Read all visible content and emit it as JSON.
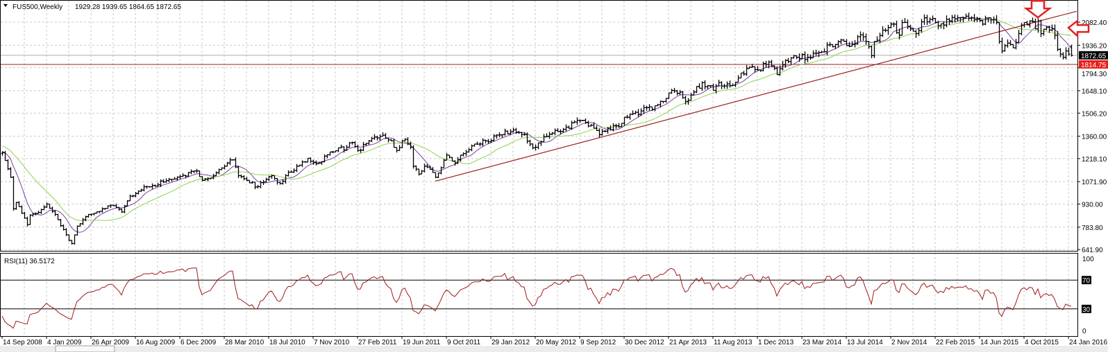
{
  "header": {
    "symbol_timeframe": "FUS500,Weekly",
    "ohlc_text": "1929.28 1939.65 1864.65 1872.65"
  },
  "rsi_panel": {
    "label": "RSI(11) 36.5172",
    "levels": [
      "100",
      "70",
      "30",
      "0"
    ]
  },
  "price_labels": {
    "current": "1872.65",
    "line": "1814.75"
  },
  "colors": {
    "bars": "#000000",
    "ma_fast": "#7a3fa0",
    "ma_slow": "#8fd14f",
    "trendline": "#9b2020",
    "rsi": "#a01818",
    "line_label_bg": "#e8201c",
    "current_label_bg": "#000000",
    "arrow": "#e02020"
  },
  "chart_data": {
    "type": "ohlc",
    "title": "FUS500,Weekly",
    "interval_weeks": 1,
    "first_bar": "14 Sep 2008",
    "last_bar_ohlc": {
      "open": 1929.28,
      "high": 1939.65,
      "low": 1864.65,
      "close": 1872.65
    },
    "ylim": [
      632,
      2222
    ],
    "y_ticks": [
      "2082.40",
      "1936.20",
      "1794.30",
      "1648.10",
      "1506.20",
      "1360.00",
      "1218.10",
      "1071.90",
      "930.00",
      "783.80",
      "641.90"
    ],
    "x_ticks": [
      "14 Sep 2008",
      "4 Jan 2009",
      "26 Apr 2009",
      "16 Aug 2009",
      "6 Dec 2009",
      "28 Mar 2010",
      "18 Jul 2010",
      "7 Nov 2010",
      "27 Feb 2011",
      "19 Jun 2011",
      "9 Oct 2011",
      "29 Jan 2012",
      "20 May 2012",
      "9 Sep 2012",
      "30 Dec 2012",
      "21 Apr 2013",
      "11 Aug 2013",
      "1 Dec 2013",
      "23 Mar 2014",
      "13 Jul 2014",
      "2 Nov 2014",
      "22 Feb 2015",
      "14 Jun 2015",
      "4 Oct 2015",
      "24 Jan 2016"
    ],
    "x_tick_every_weeks": 16,
    "bar_count": 386,
    "weekly_close_anchors": [
      [
        -24,
        1400
      ],
      [
        -12,
        1300
      ],
      [
        0,
        1255
      ],
      [
        3,
        1100
      ],
      [
        4,
        900
      ],
      [
        5,
        940
      ],
      [
        9,
        800
      ],
      [
        10,
        860
      ],
      [
        12,
        870
      ],
      [
        16,
        930
      ],
      [
        20,
        830
      ],
      [
        24,
        700
      ],
      [
        25,
        680
      ],
      [
        27,
        790
      ],
      [
        30,
        850
      ],
      [
        36,
        900
      ],
      [
        40,
        920
      ],
      [
        43,
        880
      ],
      [
        46,
        980
      ],
      [
        52,
        1040
      ],
      [
        58,
        1070
      ],
      [
        62,
        1090
      ],
      [
        64,
        1105
      ],
      [
        70,
        1140
      ],
      [
        72,
        1080
      ],
      [
        76,
        1110
      ],
      [
        80,
        1170
      ],
      [
        83,
        1210
      ],
      [
        85,
        1110
      ],
      [
        88,
        1080
      ],
      [
        92,
        1040
      ],
      [
        94,
        1070
      ],
      [
        97,
        1110
      ],
      [
        100,
        1060
      ],
      [
        102,
        1110
      ],
      [
        106,
        1170
      ],
      [
        110,
        1220
      ],
      [
        114,
        1190
      ],
      [
        118,
        1260
      ],
      [
        124,
        1290
      ],
      [
        126,
        1320
      ],
      [
        128,
        1270
      ],
      [
        132,
        1330
      ],
      [
        136,
        1360
      ],
      [
        140,
        1330
      ],
      [
        142,
        1270
      ],
      [
        145,
        1340
      ],
      [
        147,
        1290
      ],
      [
        148,
        1170
      ],
      [
        150,
        1120
      ],
      [
        152,
        1170
      ],
      [
        155,
        1130
      ],
      [
        156,
        1100
      ],
      [
        158,
        1160
      ],
      [
        160,
        1240
      ],
      [
        163,
        1190
      ],
      [
        166,
        1250
      ],
      [
        170,
        1310
      ],
      [
        174,
        1330
      ],
      [
        180,
        1370
      ],
      [
        184,
        1400
      ],
      [
        188,
        1370
      ],
      [
        190,
        1310
      ],
      [
        192,
        1290
      ],
      [
        196,
        1360
      ],
      [
        200,
        1390
      ],
      [
        204,
        1410
      ],
      [
        206,
        1450
      ],
      [
        208,
        1460
      ],
      [
        212,
        1430
      ],
      [
        215,
        1370
      ],
      [
        218,
        1410
      ],
      [
        222,
        1420
      ],
      [
        224,
        1480
      ],
      [
        230,
        1520
      ],
      [
        236,
        1560
      ],
      [
        238,
        1580
      ],
      [
        241,
        1650
      ],
      [
        244,
        1640
      ],
      [
        246,
        1580
      ],
      [
        249,
        1640
      ],
      [
        252,
        1700
      ],
      [
        254,
        1680
      ],
      [
        256,
        1650
      ],
      [
        258,
        1700
      ],
      [
        262,
        1680
      ],
      [
        266,
        1760
      ],
      [
        270,
        1800
      ],
      [
        272,
        1780
      ],
      [
        276,
        1830
      ],
      [
        278,
        1790
      ],
      [
        279,
        1750
      ],
      [
        282,
        1840
      ],
      [
        286,
        1860
      ],
      [
        290,
        1860
      ],
      [
        294,
        1890
      ],
      [
        298,
        1940
      ],
      [
        302,
        1970
      ],
      [
        305,
        1930
      ],
      [
        306,
        1940
      ],
      [
        308,
        1990
      ],
      [
        311,
        1960
      ],
      [
        313,
        1870
      ],
      [
        314,
        1960
      ],
      [
        318,
        2030
      ],
      [
        321,
        2070
      ],
      [
        323,
        2000
      ],
      [
        324,
        2080
      ],
      [
        327,
        2040
      ],
      [
        329,
        2010
      ],
      [
        332,
        2110
      ],
      [
        334,
        2100
      ],
      [
        337,
        2060
      ],
      [
        340,
        2100
      ],
      [
        344,
        2110
      ],
      [
        347,
        2120
      ],
      [
        350,
        2100
      ],
      [
        353,
        2070
      ],
      [
        355,
        2110
      ],
      [
        357,
        2100
      ],
      [
        358,
        2080
      ],
      [
        359,
        1960
      ],
      [
        360,
        1900
      ],
      [
        362,
        1950
      ],
      [
        364,
        1920
      ],
      [
        366,
        2010
      ],
      [
        368,
        2080
      ],
      [
        370,
        2090
      ],
      [
        372,
        2040
      ],
      [
        373,
        2090
      ],
      [
        374,
        2010
      ],
      [
        376,
        2050
      ],
      [
        378,
        2040
      ],
      [
        379,
        2000
      ],
      [
        380,
        1910
      ],
      [
        381,
        1880
      ],
      [
        382,
        1860
      ],
      [
        383,
        1900
      ],
      [
        384,
        1880
      ],
      [
        385,
        1872.65
      ]
    ],
    "moving_averages": [
      {
        "name": "fast",
        "period": 8
      },
      {
        "name": "slow",
        "period": 21
      }
    ],
    "rsi": {
      "period": 11,
      "value": 36.5172,
      "levels": [
        70,
        30
      ],
      "ylim": [
        0,
        100
      ]
    },
    "horizontal_lines": [
      {
        "price": 1814.75,
        "style": "support"
      },
      {
        "price": 1872.65,
        "style": "bid"
      }
    ],
    "trendline": {
      "from": {
        "week": 156,
        "price": 1075
      },
      "to": {
        "week": 387,
        "price": 2152
      }
    },
    "annotations": [
      {
        "type": "arrow-down",
        "week": 373,
        "price": 2222
      },
      {
        "type": "arrow-left",
        "week": 384,
        "price": 2047
      }
    ]
  }
}
